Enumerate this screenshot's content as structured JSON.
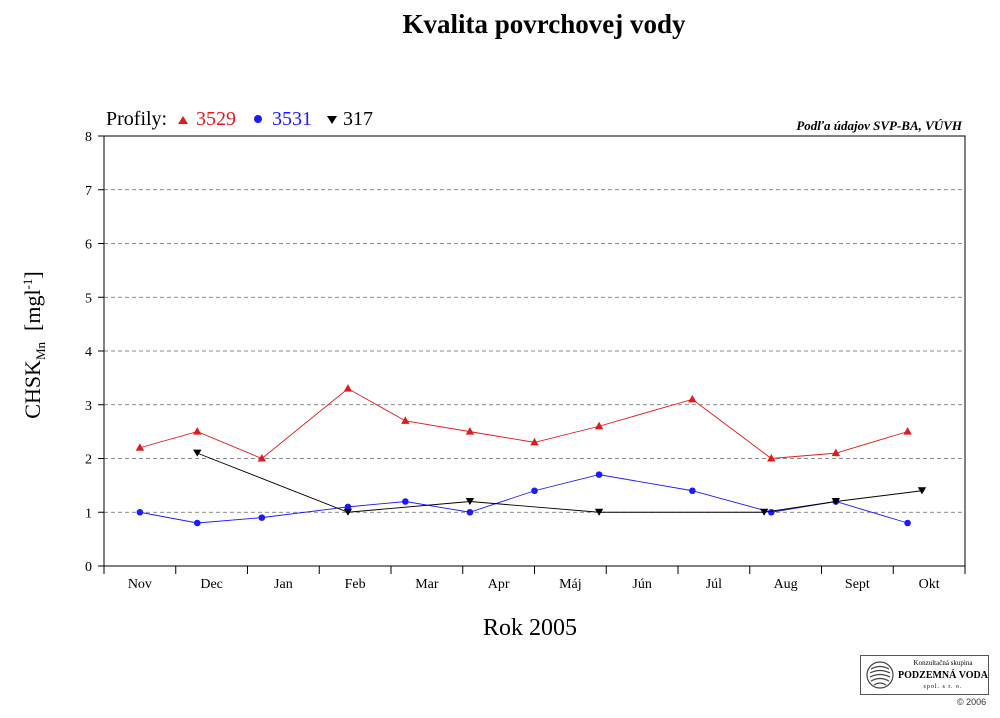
{
  "chart_data": {
    "type": "line",
    "title": "Kvalita povrchovej vody",
    "xlabel": "Rok  2005",
    "ylabel_main": "CHSK",
    "ylabel_sub": "Mn",
    "ylabel_unit_open": "  [mgl",
    "ylabel_unit_sup": "-1",
    "ylabel_unit_close": "]",
    "source_note": "Podľa údajov SVP-BA, VÚVH",
    "legend_label": "Profily:",
    "categories": [
      "Nov",
      "Dec",
      "Jan",
      "Feb",
      "Mar",
      "Apr",
      "Máj",
      "Jún",
      "Júl",
      "Aug",
      "Sept",
      "Okt"
    ],
    "ylim": [
      0,
      8
    ],
    "yticks": [
      0,
      1,
      2,
      3,
      4,
      5,
      6,
      7,
      8
    ],
    "grid": "horizontal dashed",
    "series": [
      {
        "name": "3529",
        "color": "#e31a1a",
        "marker": "triangle-up",
        "points": [
          {
            "x": 0.3,
            "y": 2.2
          },
          {
            "x": 1.1,
            "y": 2.5
          },
          {
            "x": 2.0,
            "y": 2.0
          },
          {
            "x": 3.2,
            "y": 3.3
          },
          {
            "x": 4.0,
            "y": 2.7
          },
          {
            "x": 4.9,
            "y": 2.5
          },
          {
            "x": 5.8,
            "y": 2.3
          },
          {
            "x": 6.7,
            "y": 2.6
          },
          {
            "x": 8.0,
            "y": 3.1
          },
          {
            "x": 9.1,
            "y": 2.0
          },
          {
            "x": 10.0,
            "y": 2.1
          },
          {
            "x": 11.0,
            "y": 2.5
          }
        ]
      },
      {
        "name": "3531",
        "color": "#1a1aff",
        "marker": "circle",
        "points": [
          {
            "x": 0.3,
            "y": 1.0
          },
          {
            "x": 1.1,
            "y": 0.8
          },
          {
            "x": 2.0,
            "y": 0.9
          },
          {
            "x": 3.2,
            "y": 1.1
          },
          {
            "x": 4.0,
            "y": 1.2
          },
          {
            "x": 4.9,
            "y": 1.0
          },
          {
            "x": 5.8,
            "y": 1.4
          },
          {
            "x": 6.7,
            "y": 1.7
          },
          {
            "x": 8.0,
            "y": 1.4
          },
          {
            "x": 9.1,
            "y": 1.0
          },
          {
            "x": 10.0,
            "y": 1.2
          },
          {
            "x": 11.0,
            "y": 0.8
          }
        ]
      },
      {
        "name": "317",
        "color": "#000000",
        "marker": "triangle-down",
        "points": [
          {
            "x": 1.1,
            "y": 2.1
          },
          {
            "x": 3.2,
            "y": 1.0
          },
          {
            "x": 4.9,
            "y": 1.2
          },
          {
            "x": 6.7,
            "y": 1.0
          },
          {
            "x": 9.0,
            "y": 1.0
          },
          {
            "x": 10.0,
            "y": 1.2
          },
          {
            "x": 11.2,
            "y": 1.4
          }
        ]
      }
    ]
  },
  "logo": {
    "line1": "Konzultačná skupina",
    "line2": "PODZEMNÁ VODA",
    "line3": "spol. s r. o.",
    "copyright": "© 2006"
  }
}
